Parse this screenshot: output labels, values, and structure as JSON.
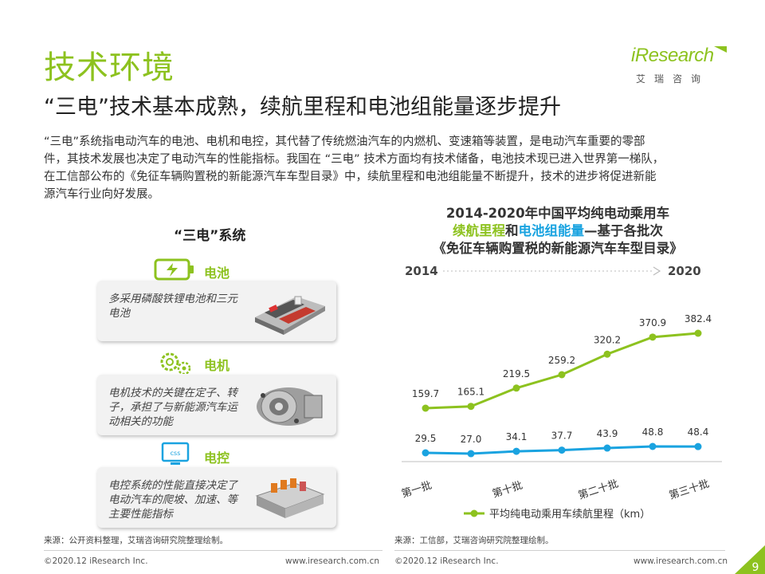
{
  "header": {
    "title": "技术环境",
    "subtitle": "“三电”技术基本成熟，续航里程和电池组能量逐步提升",
    "logo_word": "iResearch",
    "logo_sub": "艾瑞咨询"
  },
  "intro": {
    "lines": [
      "“三电”系统指电动汽车的电池、电机和电控，其代替了传统燃油汽车的内燃机、变速箱等装置，是电动汽车重要的零部",
      "件，其技术发展也决定了电动汽车的性能指标。我国在 “三电” 技术方面均有技术储备，电池技术现已进入世界第一梯队，",
      "在工信部公布的《免征车辆购置税的新能源汽车车型目录》中，续航里程和电池组能量不断提升，技术的进步将促进新能",
      "源汽车行业向好发展。"
    ]
  },
  "system": {
    "title": "“三电”系统",
    "components": [
      {
        "label": "电池",
        "icon": "battery-icon",
        "desc": "多采用磷酸铁锂电池和三元电池"
      },
      {
        "label": "电机",
        "icon": "gears-icon",
        "desc": "电机技术的关键在定子、转子，承担了与新能源汽车运动相关的功能"
      },
      {
        "label": "电控",
        "icon": "css-monitor-icon",
        "desc": "电控系统的性能直接决定了电动汽车的爬坡、加速、等主要性能指标"
      }
    ],
    "source": "来源：公开资料整理，艾瑞咨询研究院整理绘制。"
  },
  "chart_title": {
    "line1": "2014-2020年中国平均纯电动乘用车",
    "line2_a": "续航里程",
    "line2_b": "和",
    "line2_c": "电池组能量",
    "line2_d": "—基于各批次",
    "line3": "《免征车辆购置税的新能源汽车车型目录》"
  },
  "chart_data": {
    "type": "line",
    "categories": [
      "第一批",
      "",
      "第十批",
      "",
      "第二十批",
      "",
      "第三十批"
    ],
    "x_tick_labels": [
      "第一批",
      "第十批",
      "第二十批",
      "第三十批"
    ],
    "year_start": "2014",
    "year_end": "2020",
    "series": [
      {
        "name": "平均纯电动乘用车续航里程（km）",
        "values": [
          159.7,
          165.1,
          219.5,
          259.2,
          320.2,
          370.9,
          382.4
        ],
        "color": "#8dc21f"
      },
      {
        "name": "",
        "values": [
          29.5,
          27.0,
          34.1,
          37.7,
          43.9,
          48.8,
          48.4
        ],
        "color": "#1aa3e0"
      }
    ],
    "value_labels_green": [
      "159.7",
      "165.1",
      "219.5",
      "259.2",
      "320.2",
      "370.9",
      "382.4"
    ],
    "value_labels_blue": [
      "29.5",
      "27.0",
      "34.1",
      "37.7",
      "43.9",
      "48.8",
      "48.4"
    ],
    "legend": "平均纯电动乘用车续航里程（km）",
    "legend_position": "bottom",
    "source": "来源：工信部，艾瑞咨询研究院整理绘制。"
  },
  "footer": {
    "left_copyright": "©2020.12 iResearch Inc.",
    "left_url": "www.iresearch.com.cn",
    "right_copyright": "©2020.12 iResearch Inc.",
    "right_url": "www.iresearch.com.cn",
    "page": "9"
  },
  "colors": {
    "accent_green": "#8dc21f",
    "accent_blue": "#1aa3e0"
  }
}
